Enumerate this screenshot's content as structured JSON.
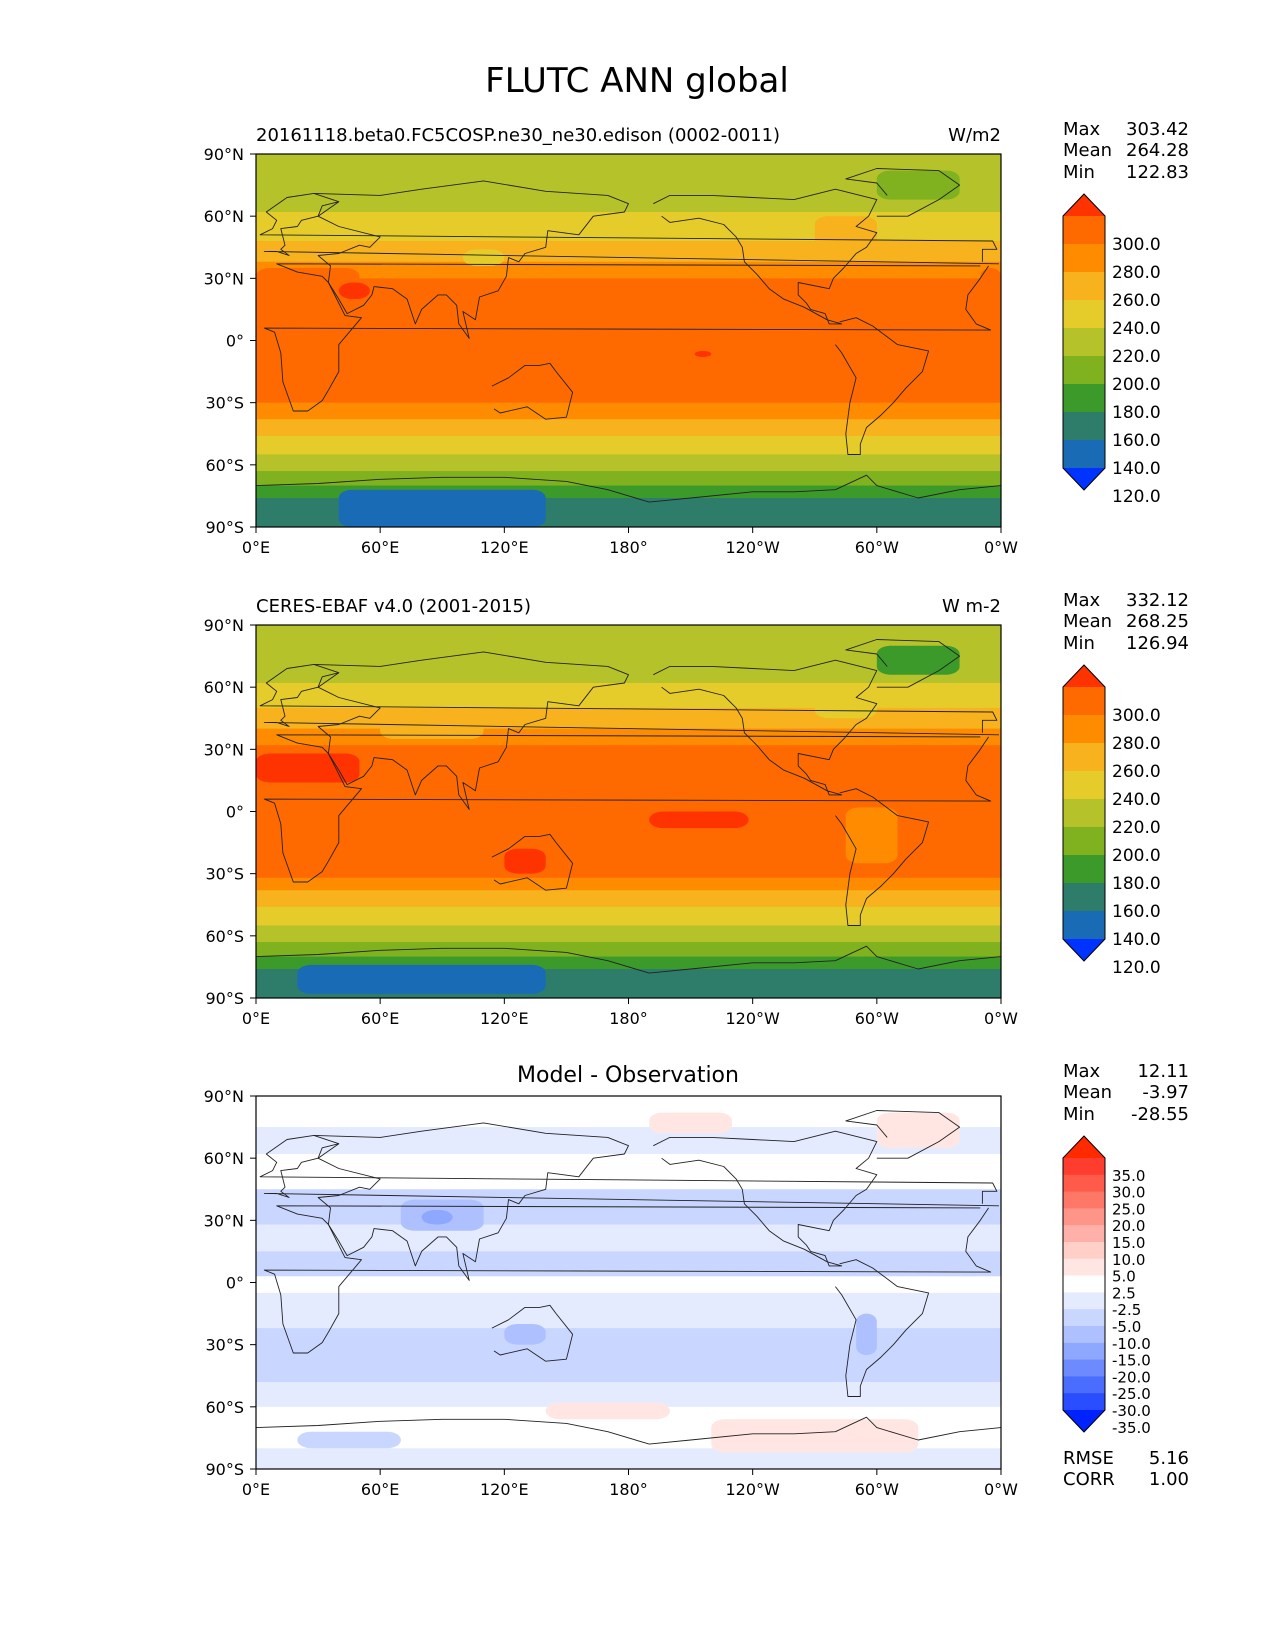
{
  "title": "FLUTC ANN global",
  "lon_ticks": [
    "0°E",
    "60°E",
    "120°E",
    "180°",
    "120°W",
    "60°W",
    "0°W"
  ],
  "lat_ticks": [
    "90°N",
    "60°N",
    "30°N",
    "0°",
    "30°S",
    "60°S",
    "90°S"
  ],
  "panels": [
    {
      "left_title": "20161118.beta0.FC5COSP.ne30_ne30.edison (0002-0011)",
      "center_title": "",
      "units": "W/m2",
      "stats": [
        {
          "label": "Max",
          "value": "303.42"
        },
        {
          "label": "Mean",
          "value": "264.28"
        },
        {
          "label": "Min",
          "value": "122.83"
        }
      ],
      "extra_stats": []
    },
    {
      "left_title": "CERES-EBAF v4.0 (2001-2015)",
      "center_title": "",
      "units": "W m-2",
      "stats": [
        {
          "label": "Max",
          "value": "332.12"
        },
        {
          "label": "Mean",
          "value": "268.25"
        },
        {
          "label": "Min",
          "value": "126.94"
        }
      ],
      "extra_stats": []
    },
    {
      "left_title": "",
      "center_title": "Model - Observation",
      "units": "",
      "stats": [
        {
          "label": "Max",
          "value": "12.11"
        },
        {
          "label": "Mean",
          "value": "-3.97"
        },
        {
          "label": "Min",
          "value": "-28.55"
        }
      ],
      "extra_stats": [
        {
          "label": "RMSE",
          "value": "5.16"
        },
        {
          "label": "CORR",
          "value": "1.00"
        }
      ]
    }
  ],
  "colorbars": {
    "field": {
      "labels": [
        "300.0",
        "280.0",
        "260.0",
        "240.0",
        "220.0",
        "200.0",
        "180.0",
        "160.0",
        "140.0",
        "120.0"
      ],
      "colors_top_to_bottom": [
        "#ff3300",
        "#ff6a00",
        "#ff8c00",
        "#f7b21e",
        "#e6cc2a",
        "#b5c22a",
        "#7fb21e",
        "#3c9a2a",
        "#2e7d6b",
        "#1a6bb5",
        "#0033ff"
      ]
    },
    "diff": {
      "labels": [
        "35.0",
        "30.0",
        "25.0",
        "20.0",
        "15.0",
        "10.0",
        "5.0",
        "2.5",
        "-2.5",
        "-5.0",
        "-10.0",
        "-15.0",
        "-20.0",
        "-25.0",
        "-30.0",
        "-35.0"
      ],
      "colors_top_to_bottom": [
        "#ff2a00",
        "#ff3d2e",
        "#ff5a4a",
        "#ff7766",
        "#ff9488",
        "#ffb0a8",
        "#ffcfc8",
        "#ffe6e2",
        "#ffffff",
        "#e4ebff",
        "#c9d6ff",
        "#aec0ff",
        "#8ea7ff",
        "#6d8bff",
        "#4a6cff",
        "#2a4dff",
        "#0022ff"
      ]
    }
  },
  "chart_data": [
    {
      "type": "heatmap",
      "title": "20161118.beta0.FC5COSP.ne30_ne30.edison (0002-0011)",
      "units": "W/m2",
      "xlabel": "",
      "ylabel": "",
      "xlim": [
        0,
        360
      ],
      "ylim": [
        -90,
        90
      ],
      "x_tick_labels": [
        "0°E",
        "60°E",
        "120°E",
        "180°",
        "120°W",
        "60°W",
        "0°W"
      ],
      "y_tick_labels": [
        "90°N",
        "60°N",
        "30°N",
        "0°",
        "30°S",
        "60°S",
        "90°S"
      ],
      "zonal_mean_profile": {
        "lat": [
          90,
          75,
          60,
          45,
          30,
          15,
          0,
          -15,
          -30,
          -45,
          -60,
          -70,
          -80,
          -90
        ],
        "value": [
          205,
          215,
          232,
          250,
          268,
          283,
          278,
          282,
          268,
          248,
          225,
          180,
          150,
          145
        ]
      },
      "levels": [
        120,
        140,
        160,
        180,
        200,
        220,
        240,
        260,
        280,
        300
      ],
      "max": 303.42,
      "mean": 264.28,
      "min": 122.83
    },
    {
      "type": "heatmap",
      "title": "CERES-EBAF v4.0 (2001-2015)",
      "units": "W m-2",
      "xlabel": "",
      "ylabel": "",
      "xlim": [
        0,
        360
      ],
      "ylim": [
        -90,
        90
      ],
      "x_tick_labels": [
        "0°E",
        "60°E",
        "120°E",
        "180°",
        "120°W",
        "60°W",
        "0°W"
      ],
      "y_tick_labels": [
        "90°N",
        "60°N",
        "30°N",
        "0°",
        "30°S",
        "60°S",
        "90°S"
      ],
      "zonal_mean_profile": {
        "lat": [
          90,
          75,
          60,
          45,
          30,
          15,
          0,
          -15,
          -30,
          -45,
          -60,
          -70,
          -80,
          -90
        ],
        "value": [
          208,
          218,
          235,
          252,
          272,
          286,
          282,
          288,
          272,
          252,
          230,
          185,
          150,
          148
        ]
      },
      "levels": [
        120,
        140,
        160,
        180,
        200,
        220,
        240,
        260,
        280,
        300
      ],
      "max": 332.12,
      "mean": 268.25,
      "min": 126.94
    },
    {
      "type": "heatmap",
      "title": "Model - Observation",
      "xlabel": "",
      "ylabel": "",
      "xlim": [
        0,
        360
      ],
      "ylim": [
        -90,
        90
      ],
      "x_tick_labels": [
        "0°E",
        "60°E",
        "120°E",
        "180°",
        "120°W",
        "60°W",
        "0°W"
      ],
      "y_tick_labels": [
        "90°N",
        "60°N",
        "30°N",
        "0°",
        "30°S",
        "60°S",
        "90°S"
      ],
      "zonal_mean_profile": {
        "lat": [
          90,
          75,
          60,
          45,
          30,
          15,
          0,
          -15,
          -30,
          -45,
          -60,
          -70,
          -80,
          -90
        ],
        "value": [
          3,
          -3,
          -2,
          -4,
          -6,
          -5,
          -2,
          -6,
          -6,
          -6,
          0,
          2,
          -3,
          -1
        ]
      },
      "levels": [
        -35,
        -30,
        -25,
        -20,
        -15,
        -10,
        -5,
        -2.5,
        2.5,
        5,
        10,
        15,
        20,
        25,
        30,
        35
      ],
      "max": 12.11,
      "mean": -3.97,
      "min": -28.55,
      "rmse": 5.16,
      "corr": 1.0
    }
  ]
}
